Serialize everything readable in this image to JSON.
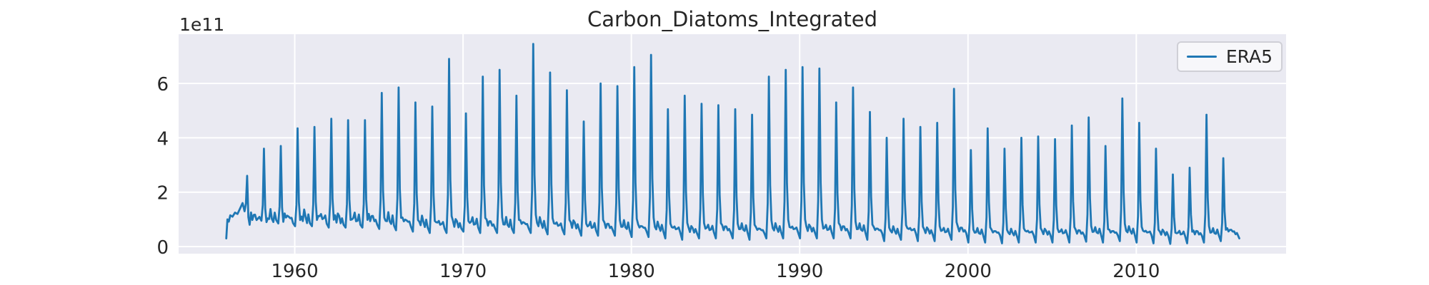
{
  "chart_data": {
    "type": "line",
    "title": "Carbon_Diatoms_Integrated",
    "offset_text": "1e11",
    "value_units": "values are in multiples of 1e11 (per y-axis offset text)",
    "xlabel": "",
    "ylabel": "",
    "grid": true,
    "legend": {
      "entries": [
        "ERA5"
      ],
      "position": "upper right"
    },
    "series_color": "#1f77b4",
    "axes_background": "#eaeaf2",
    "grid_color": "#ffffff",
    "text_color": "#262626",
    "figure_background": "#ffffff",
    "legend_border_color": "#cfcfd6",
    "xticks": [
      1960,
      1970,
      1980,
      1990,
      2000,
      2010
    ],
    "yticks": [
      0,
      2,
      4,
      6
    ],
    "xlim": [
      1953.1,
      2018.9
    ],
    "ylim": [
      -0.26,
      7.81
    ],
    "description": "Monthly seasonal time series 1956-2016 of integrated diatom carbon (ERA5 forcing): sharp annual spring-bloom spikes above a low baseline near 0.6-1.2e11; spike amplitude grows from ~2.6e11 (1957) to a maximum ~7.5e11 (1974), stays high through the 1980s, then declines toward ~3-5e11 after 2000.",
    "lead_in": [
      [
        1955.93,
        0.3
      ],
      [
        1956.0,
        1.0
      ],
      [
        1956.08,
        0.92
      ],
      [
        1956.17,
        1.15
      ],
      [
        1956.3,
        1.1
      ],
      [
        1956.45,
        1.25
      ],
      [
        1956.6,
        1.2
      ],
      [
        1956.75,
        1.4
      ],
      [
        1956.9,
        1.6
      ]
    ],
    "annual_cycle": [
      {
        "year": 1957,
        "peak": 2.6,
        "min": 1.3
      },
      {
        "year": 1958,
        "peak": 3.6,
        "min": 0.95
      },
      {
        "year": 1959,
        "peak": 3.7,
        "min": 0.85
      },
      {
        "year": 1960,
        "peak": 4.35,
        "min": 0.75
      },
      {
        "year": 1961,
        "peak": 4.4,
        "min": 0.75
      },
      {
        "year": 1962,
        "peak": 4.7,
        "min": 0.7
      },
      {
        "year": 1963,
        "peak": 4.65,
        "min": 0.7
      },
      {
        "year": 1964,
        "peak": 4.65,
        "min": 0.7
      },
      {
        "year": 1965,
        "peak": 5.65,
        "min": 0.65
      },
      {
        "year": 1966,
        "peak": 5.85,
        "min": 0.6
      },
      {
        "year": 1967,
        "peak": 5.3,
        "min": 0.55
      },
      {
        "year": 1968,
        "peak": 5.15,
        "min": 0.5
      },
      {
        "year": 1969,
        "peak": 6.9,
        "min": 0.5
      },
      {
        "year": 1970,
        "peak": 4.9,
        "min": 0.55
      },
      {
        "year": 1971,
        "peak": 6.25,
        "min": 0.5
      },
      {
        "year": 1972,
        "peak": 6.5,
        "min": 0.5
      },
      {
        "year": 1973,
        "peak": 5.55,
        "min": 0.5
      },
      {
        "year": 1974,
        "peak": 7.45,
        "min": 0.5
      },
      {
        "year": 1975,
        "peak": 6.4,
        "min": 0.45
      },
      {
        "year": 1976,
        "peak": 5.75,
        "min": 0.45
      },
      {
        "year": 1977,
        "peak": 4.6,
        "min": 0.4
      },
      {
        "year": 1978,
        "peak": 6.0,
        "min": 0.4
      },
      {
        "year": 1979,
        "peak": 5.9,
        "min": 0.4
      },
      {
        "year": 1980,
        "peak": 6.6,
        "min": 0.35
      },
      {
        "year": 1981,
        "peak": 7.05,
        "min": 0.35
      },
      {
        "year": 1982,
        "peak": 5.05,
        "min": 0.3
      },
      {
        "year": 1983,
        "peak": 5.55,
        "min": 0.25
      },
      {
        "year": 1984,
        "peak": 5.25,
        "min": 0.3
      },
      {
        "year": 1985,
        "peak": 5.2,
        "min": 0.3
      },
      {
        "year": 1986,
        "peak": 5.05,
        "min": 0.3
      },
      {
        "year": 1987,
        "peak": 4.85,
        "min": 0.25
      },
      {
        "year": 1988,
        "peak": 6.25,
        "min": 0.3
      },
      {
        "year": 1989,
        "peak": 6.5,
        "min": 0.3
      },
      {
        "year": 1990,
        "peak": 6.6,
        "min": 0.3
      },
      {
        "year": 1991,
        "peak": 6.55,
        "min": 0.3
      },
      {
        "year": 1992,
        "peak": 5.3,
        "min": 0.3
      },
      {
        "year": 1993,
        "peak": 5.85,
        "min": 0.3
      },
      {
        "year": 1994,
        "peak": 4.95,
        "min": 0.25
      },
      {
        "year": 1995,
        "peak": 4.0,
        "min": 0.2
      },
      {
        "year": 1996,
        "peak": 4.7,
        "min": 0.25
      },
      {
        "year": 1997,
        "peak": 4.4,
        "min": 0.2
      },
      {
        "year": 1998,
        "peak": 4.55,
        "min": 0.2
      },
      {
        "year": 1999,
        "peak": 5.8,
        "min": 0.25
      },
      {
        "year": 2000,
        "peak": 3.55,
        "min": 0.15
      },
      {
        "year": 2001,
        "peak": 4.35,
        "min": 0.15
      },
      {
        "year": 2002,
        "peak": 3.6,
        "min": 0.12
      },
      {
        "year": 2003,
        "peak": 4.0,
        "min": 0.15
      },
      {
        "year": 2004,
        "peak": 4.05,
        "min": 0.15
      },
      {
        "year": 2005,
        "peak": 3.95,
        "min": 0.15
      },
      {
        "year": 2006,
        "peak": 4.45,
        "min": 0.15
      },
      {
        "year": 2007,
        "peak": 4.75,
        "min": 0.18
      },
      {
        "year": 2008,
        "peak": 3.7,
        "min": 0.15
      },
      {
        "year": 2009,
        "peak": 5.45,
        "min": 0.2
      },
      {
        "year": 2010,
        "peak": 4.55,
        "min": 0.15
      },
      {
        "year": 2011,
        "peak": 3.6,
        "min": 0.12
      },
      {
        "year": 2012,
        "peak": 2.65,
        "min": 0.1
      },
      {
        "year": 2013,
        "peak": 2.9,
        "min": 0.12
      },
      {
        "year": 2014,
        "peak": 4.85,
        "min": 0.15
      },
      {
        "year": 2015,
        "peak": 3.25,
        "min": 0.2
      }
    ],
    "tail": [
      [
        2015.98,
        0.5
      ],
      [
        2016.05,
        0.4
      ],
      [
        2016.12,
        0.3
      ]
    ]
  }
}
